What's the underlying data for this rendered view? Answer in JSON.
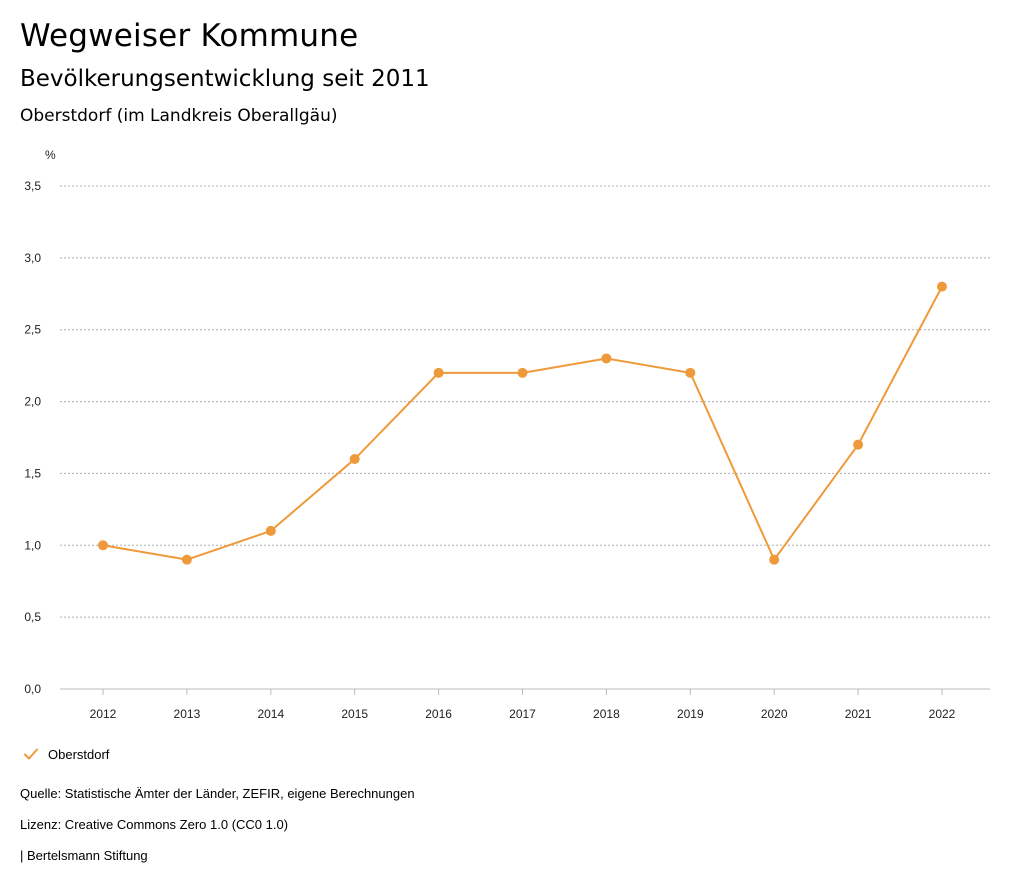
{
  "header": {
    "title": "Wegweiser Kommune",
    "subtitle": "Bevölkerungsentwicklung seit 2011",
    "region": "Oberstdorf (im Landkreis Oberallgäu)"
  },
  "legend": {
    "label": "Oberstdorf"
  },
  "footer": {
    "source": "Quelle: Statistische Ämter der Länder, ZEFIR, eigene Berechnungen",
    "license": "Lizenz: Creative Commons Zero 1.0 (CC0 1.0)",
    "publisher": "| Bertelsmann Stiftung"
  },
  "chart_data": {
    "type": "line",
    "title": "Bevölkerungsentwicklung seit 2011",
    "subtitle": "Oberstdorf (im Landkreis Oberallgäu)",
    "ylabel": "%",
    "xlabel": "",
    "x": [
      "2012",
      "2013",
      "2014",
      "2015",
      "2016",
      "2017",
      "2018",
      "2019",
      "2020",
      "2021",
      "2022"
    ],
    "series": [
      {
        "name": "Oberstdorf",
        "values": [
          1.0,
          0.9,
          1.1,
          1.6,
          2.2,
          2.2,
          2.3,
          2.2,
          0.9,
          1.7,
          2.8
        ],
        "color": "#ef9a3a"
      }
    ],
    "ylim": [
      0,
      3.5
    ],
    "yticks": [
      "0,0",
      "0,5",
      "1,0",
      "1,5",
      "2,0",
      "2,5",
      "3,0",
      "3,5"
    ],
    "grid": true,
    "legend_position": "bottom-left"
  }
}
